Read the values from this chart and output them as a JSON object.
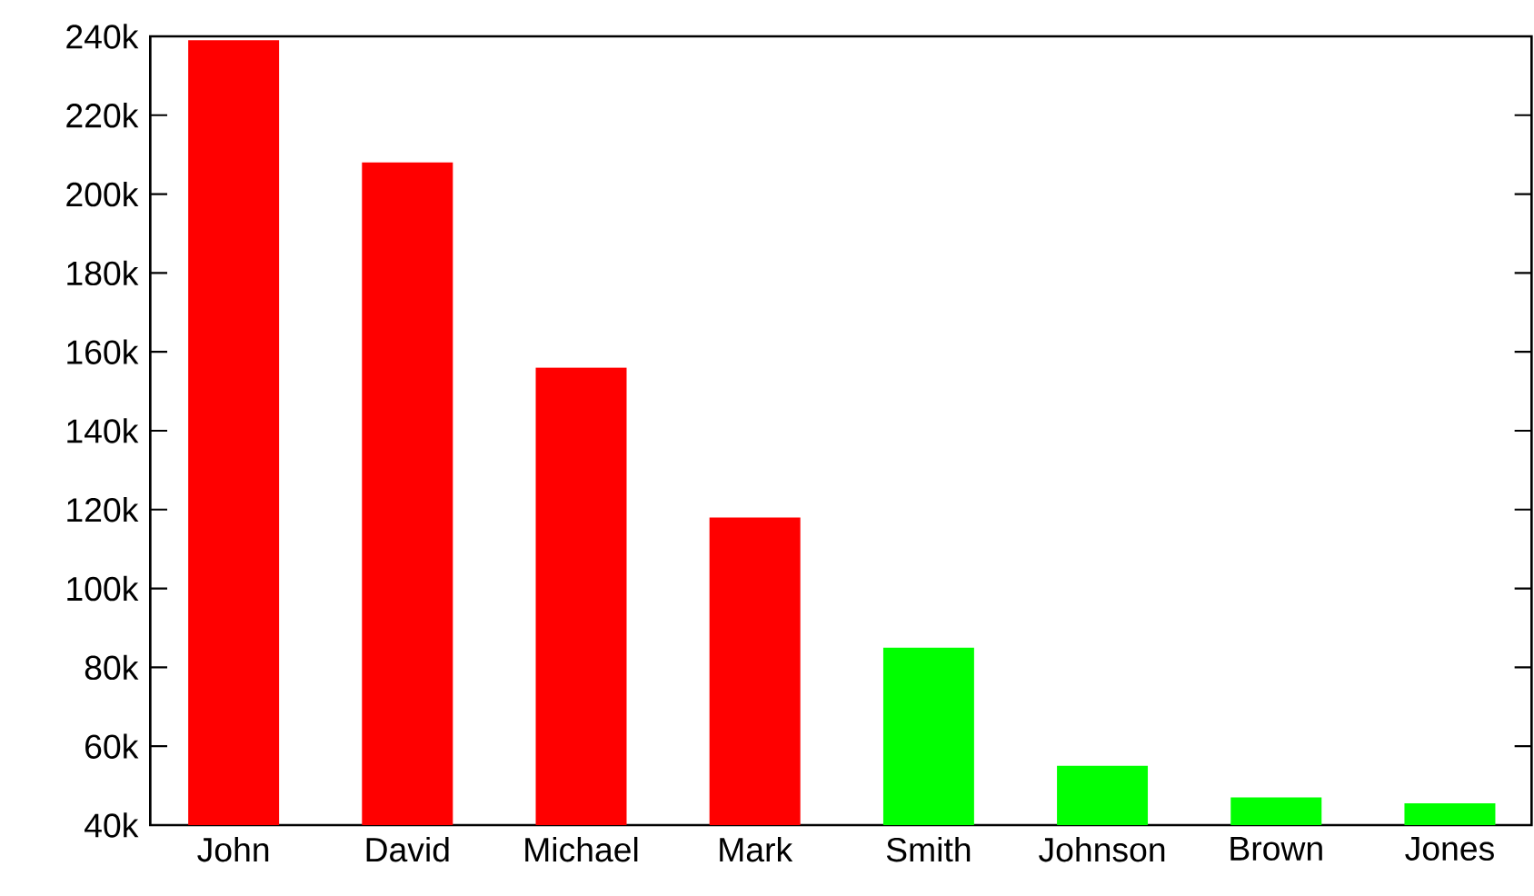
{
  "chart_data": {
    "type": "bar",
    "categories": [
      "John",
      "David",
      "Michael",
      "Mark",
      "Smith",
      "Johnson",
      "Brown",
      "Jones"
    ],
    "values": [
      239000,
      208000,
      156000,
      118000,
      85000,
      55000,
      47000,
      45500
    ],
    "colors": [
      "#ff0000",
      "#ff0000",
      "#ff0000",
      "#ff0000",
      "#00ff00",
      "#00ff00",
      "#00ff00",
      "#00ff00"
    ],
    "ylim": [
      40000,
      240000
    ],
    "yticks": [
      {
        "value": 40000,
        "label": "40k"
      },
      {
        "value": 60000,
        "label": "60k"
      },
      {
        "value": 80000,
        "label": "80k"
      },
      {
        "value": 100000,
        "label": "100k"
      },
      {
        "value": 120000,
        "label": "120k"
      },
      {
        "value": 140000,
        "label": "140k"
      },
      {
        "value": 160000,
        "label": "160k"
      },
      {
        "value": 180000,
        "label": "180k"
      },
      {
        "value": 200000,
        "label": "200k"
      },
      {
        "value": 220000,
        "label": "220k"
      },
      {
        "value": 240000,
        "label": "240k"
      }
    ]
  }
}
